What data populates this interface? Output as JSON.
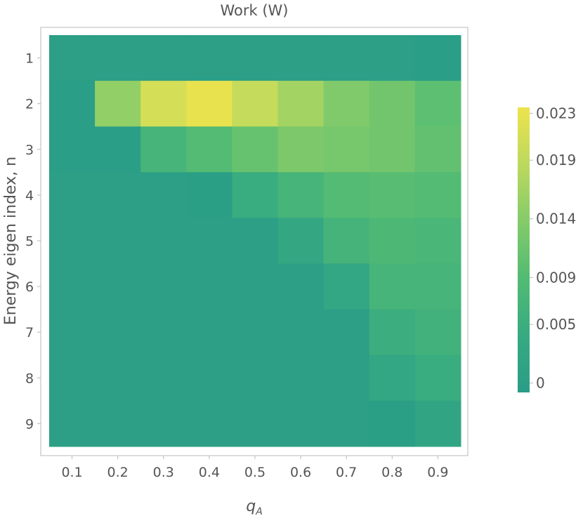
{
  "chart_data": {
    "type": "heatmap",
    "title": "Work (W)",
    "xlabel_base": "q",
    "xlabel_sub": "A",
    "ylabel": "Energy eigen index, n",
    "x_categories": [
      "0.1",
      "0.2",
      "0.3",
      "0.4",
      "0.5",
      "0.6",
      "0.7",
      "0.8",
      "0.9"
    ],
    "y_categories": [
      "1",
      "2",
      "3",
      "4",
      "5",
      "6",
      "7",
      "8",
      "9"
    ],
    "values": [
      [
        0.0,
        0.0,
        0.0,
        0.0,
        0.0,
        0.0,
        0.0,
        0.0,
        -0.0005
      ],
      [
        -0.0005,
        0.015,
        0.021,
        0.023,
        0.0195,
        0.0165,
        0.0135,
        0.012,
        0.01
      ],
      [
        -0.0005,
        -0.0005,
        0.007,
        0.009,
        0.011,
        0.013,
        0.0125,
        0.012,
        0.0105
      ],
      [
        0.0,
        0.0,
        -0.0002,
        -0.0003,
        0.0045,
        0.007,
        0.009,
        0.0095,
        0.009
      ],
      [
        0.0,
        0.0,
        0.0,
        0.0,
        0.0,
        0.003,
        0.0065,
        0.008,
        0.0075
      ],
      [
        0.0,
        0.0,
        0.0,
        0.0,
        0.0,
        0.0,
        0.0025,
        0.007,
        0.007
      ],
      [
        0.0,
        0.0,
        0.0,
        0.0,
        0.0,
        0.0,
        0.0,
        0.005,
        0.006
      ],
      [
        0.0,
        0.0,
        0.0,
        0.0,
        0.0,
        0.0,
        0.0,
        0.0025,
        0.0045
      ],
      [
        0.0,
        0.0,
        0.0,
        0.0,
        0.0,
        0.0,
        0.0,
        -0.0003,
        0.002
      ]
    ],
    "colorbar": {
      "range": [
        -0.0008,
        0.0235
      ],
      "ticks": [
        0,
        0.005,
        0.009,
        0.014,
        0.019,
        0.023
      ],
      "tick_labels": [
        "0",
        "0.005",
        "0.009",
        "0.014",
        "0.019",
        "0.023"
      ],
      "colors": [
        "#2a9d87",
        "#37aa81",
        "#52bb73",
        "#84cb6a",
        "#bcd95e",
        "#ede34d"
      ]
    },
    "grid": false
  }
}
